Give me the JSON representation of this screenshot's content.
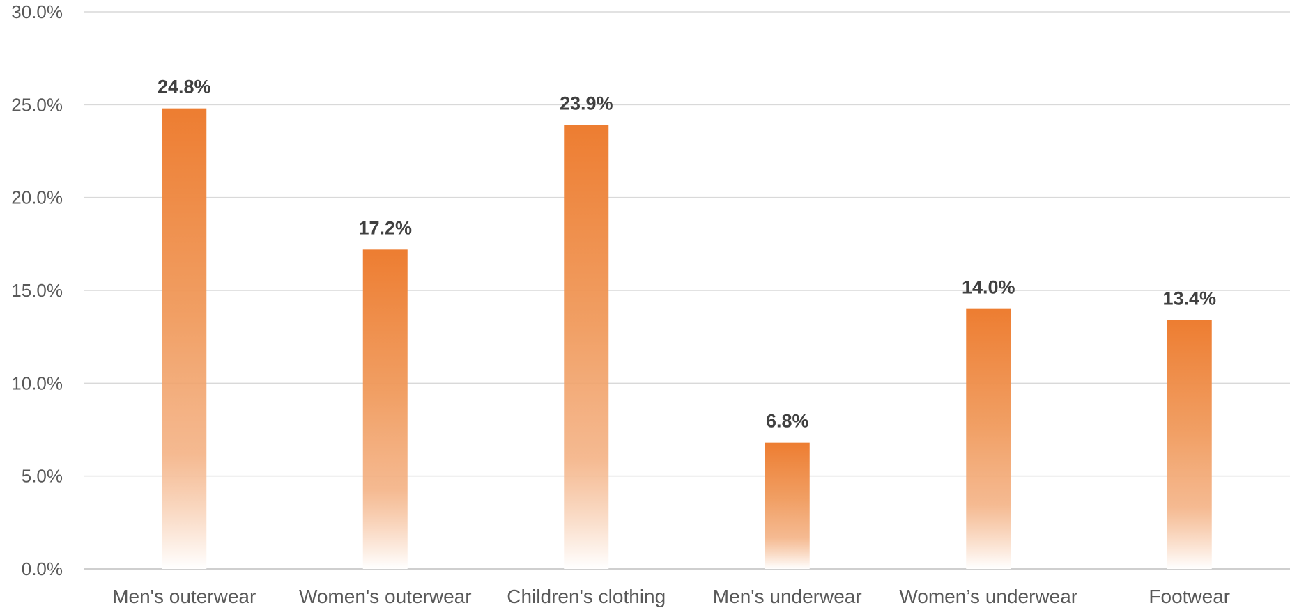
{
  "chart_data": {
    "type": "bar",
    "title": "",
    "xlabel": "",
    "ylabel": "",
    "categories": [
      "Men's outerwear",
      "Women's outerwear",
      "Children's clothing",
      "Men's underwear",
      "Women’s underwear",
      "Footwear"
    ],
    "values": [
      24.8,
      17.2,
      23.9,
      6.8,
      14.0,
      13.4
    ],
    "data_labels": [
      "24.8%",
      "17.2%",
      "23.9%",
      "6.8%",
      "14.0%",
      "13.4%"
    ],
    "ylim": [
      0,
      30
    ],
    "y_ticks": [
      0,
      5,
      10,
      15,
      20,
      25,
      30
    ],
    "y_tick_labels": [
      "0.0%",
      "5.0%",
      "10.0%",
      "15.0%",
      "20.0%",
      "25.0%",
      "30.0%"
    ],
    "grid": true,
    "legend": "none",
    "bar_color": "#ed7d31",
    "bar_fill": "vertical gradient from orange at top fading to white at bottom"
  }
}
